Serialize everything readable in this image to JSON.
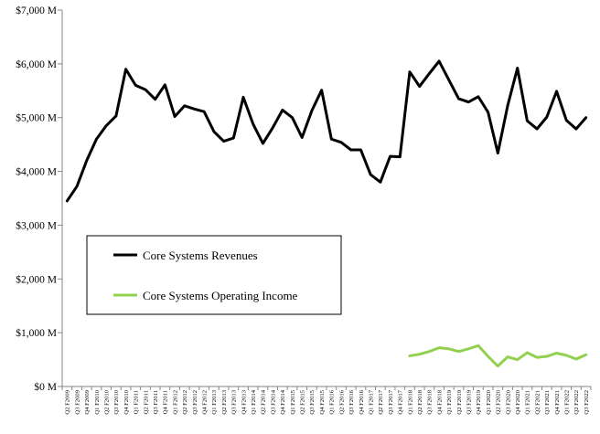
{
  "chart_data": {
    "type": "line",
    "title": "",
    "xlabel": "",
    "ylabel": "",
    "ylim": [
      0,
      7000
    ],
    "yticks": [
      0,
      1000,
      2000,
      3000,
      4000,
      5000,
      6000,
      7000
    ],
    "ytick_labels": [
      "$0 M",
      "$1,000 M",
      "$2,000 M",
      "$3,000 M",
      "$4,000 M",
      "$5,000 M",
      "$6,000 M",
      "$7,000 M"
    ],
    "grid": false,
    "legend_position": "center-left",
    "categories": [
      "Q2 F2009",
      "Q3 F2009",
      "Q4 F2009",
      "Q1 F2010",
      "Q2 F2010",
      "Q3 F2010",
      "Q4 F2010",
      "Q1 F2011",
      "Q2 F2011",
      "Q3 F2011",
      "Q4 F2011",
      "Q1 F2012",
      "Q2 F2012",
      "Q3 F2012",
      "Q4 F2012",
      "Q1 F2013",
      "Q2 F2013",
      "Q3 F2013",
      "Q4 F2013",
      "Q1 F2014",
      "Q2 F2014",
      "Q3 F2014",
      "Q4 F2014",
      "Q1 F2015",
      "Q2 F2015",
      "Q3 F2015",
      "Q4 F2015",
      "Q1 F2016",
      "Q2 F2016",
      "Q3 F2016",
      "Q4 F2016",
      "Q1 F2017",
      "Q2 F2017",
      "Q3 F2017",
      "Q4 F2017",
      "Q1 F2018",
      "Q2 F2018",
      "Q3 F2018",
      "Q4 F2018",
      "Q1 F2019",
      "Q2 F2019",
      "Q3 F2019",
      "Q4 F2019",
      "Q1 F2020",
      "Q2 F2020",
      "Q3 F2020",
      "Q4 F2020",
      "Q1 F2021",
      "Q2 F2021",
      "Q3 F2021",
      "Q4 F2021",
      "Q1 F2022",
      "Q2 F2022",
      "Q3 F2022"
    ],
    "series": [
      {
        "name": "Core Systems Revenues",
        "color": "#000000",
        "values": [
          3450,
          3720,
          4200,
          4600,
          4850,
          5030,
          5900,
          5600,
          5520,
          5340,
          5610,
          5020,
          5220,
          5160,
          5110,
          4740,
          4560,
          4620,
          5380,
          4880,
          4520,
          4810,
          5140,
          5000,
          4630,
          5130,
          5510,
          4600,
          4540,
          4400,
          4400,
          3940,
          3800,
          4280,
          4270,
          5850,
          5580,
          5820,
          6050,
          5700,
          5350,
          5290,
          5390,
          5100,
          4340,
          5220,
          5920,
          4940,
          4790,
          5010,
          5490,
          4950,
          4790,
          5000
        ]
      },
      {
        "name": "Core Systems Operating Income",
        "color": "#92d050",
        "values": [
          null,
          null,
          null,
          null,
          null,
          null,
          null,
          null,
          null,
          null,
          null,
          null,
          null,
          null,
          null,
          null,
          null,
          null,
          null,
          null,
          null,
          null,
          null,
          null,
          null,
          null,
          null,
          null,
          null,
          null,
          null,
          null,
          null,
          null,
          null,
          570,
          600,
          650,
          720,
          700,
          650,
          700,
          760,
          560,
          380,
          550,
          500,
          630,
          540,
          560,
          620,
          580,
          510,
          590
        ]
      }
    ]
  }
}
